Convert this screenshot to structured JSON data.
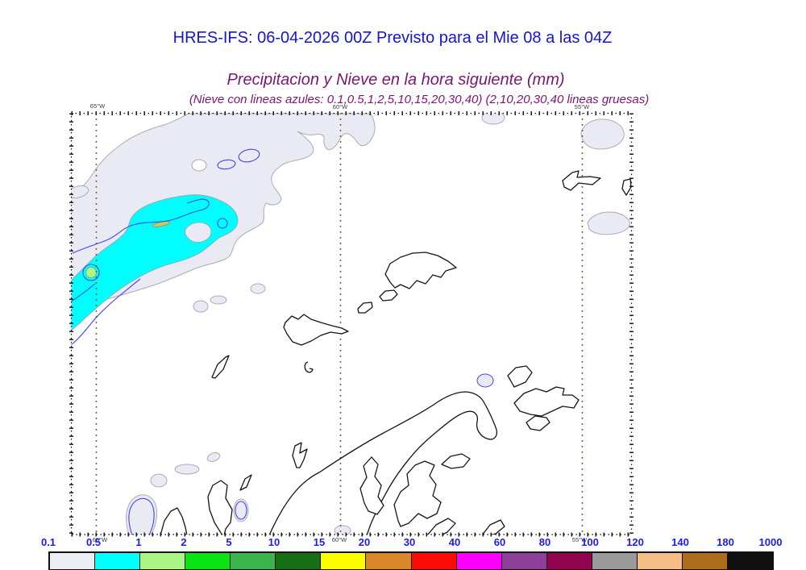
{
  "header": {
    "title": "HRES-IFS: 06-04-2026 00Z Previsto para el Mie 08 a las 04Z",
    "subtitle": "Precipitacion y Nieve en la hora siguiente (mm)",
    "legend_note": "(Nieve con lineas azules: 0.1,0.5,1,2,5,10,15,20,30,40)  (2,10,20,30,40 lineas gruesas)"
  },
  "map": {
    "meridians": [
      {
        "label": "65°W"
      },
      {
        "label": "60°W"
      },
      {
        "label": "55°W"
      }
    ]
  },
  "colorbar": {
    "labels": [
      "0.1",
      "0.5",
      "1",
      "2",
      "5",
      "10",
      "15",
      "20",
      "30",
      "40",
      "60",
      "80",
      "100",
      "120",
      "140",
      "180",
      "1000"
    ],
    "colors": [
      "#ededf4",
      "#00ffff",
      "#aaf584",
      "#0ae414",
      "#3cb44e",
      "#156f15",
      "#fdfd00",
      "#d8882b",
      "#fb0b06",
      "#fb00fb",
      "#8d3f99",
      "#90034e",
      "#9a9a9a",
      "#f4bd85",
      "#b06c1e",
      "#111111"
    ],
    "unit": "mm"
  },
  "colors": {
    "title_blue": "#1414dd",
    "subtitle_purple": "#7d1570",
    "colorbar_label_blue": "#1c1cf0",
    "precip_light_fill": "#e9eaf3",
    "precip_moderate_fill": "#00ffff",
    "precip_heavier_fill": "#aaf584",
    "snow_contour_blue": "#4444f0",
    "meridian_dots_brown": "#6b4e22",
    "coastline_black": "#151515"
  },
  "chart_data": {
    "type": "map",
    "title": "Precipitacion y Nieve en la hora siguiente (mm)",
    "model_run": "HRES-IFS: 06-04-2026 00Z",
    "valid": "Mie 08 a las 04Z",
    "scale_mm": [
      0.1,
      0.5,
      1,
      2,
      5,
      10,
      15,
      20,
      30,
      40,
      60,
      80,
      100,
      120,
      140,
      180,
      1000
    ],
    "snow_contour_levels_mm": [
      0.1,
      0.5,
      1,
      2,
      5,
      10,
      15,
      20,
      30,
      40
    ],
    "snow_thick_contour_levels_mm": [
      2,
      10,
      20,
      30,
      40
    ],
    "meridians_deg_w": [
      65,
      60,
      55
    ],
    "visible_precip_levels": [
      {
        "range_mm": "0.1-0.5",
        "color": "#e9eaf3",
        "location": "large area northwest quadrant and scattered small patches"
      },
      {
        "range_mm": "0.5-1",
        "color": "#00ffff",
        "location": "elongated band upper-left, oriented SW-NE"
      },
      {
        "range_mm": "1-2",
        "color": "#aaf584",
        "location": "small spot inside cyan band near 65W"
      }
    ]
  }
}
